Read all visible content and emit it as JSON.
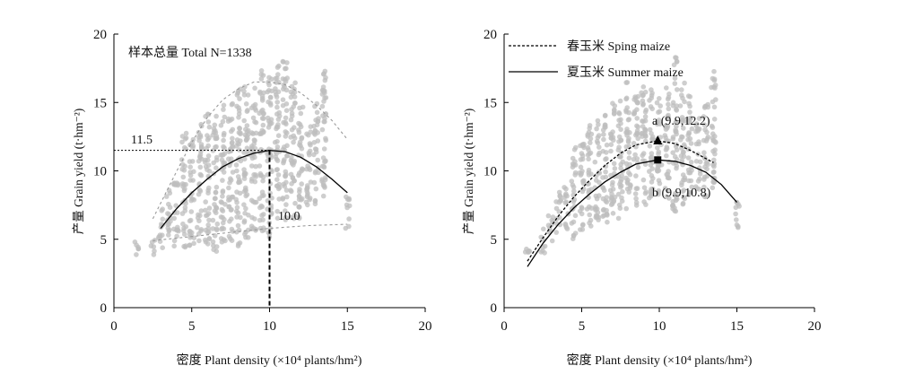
{
  "chart_data": [
    {
      "type": "scatter",
      "panel": "left",
      "xlabel": "密度 Plant density (×10⁴ plants/hm²)",
      "ylabel": "产量 Grain yield (t·hm⁻²)",
      "xlim": [
        0,
        20
      ],
      "ylim": [
        0,
        20
      ],
      "xticks": [
        "0",
        "5",
        "10",
        "15",
        "20"
      ],
      "yticks": [
        "0",
        "5",
        "10",
        "15",
        "20"
      ],
      "grid": false,
      "annotations": {
        "total": "样本总量 Total N=1338",
        "opt_yield": "11.5",
        "opt_density": "10.0"
      },
      "optimum": {
        "x": 10.0,
        "y": 11.5
      },
      "series": [
        {
          "role": "upper-boundary",
          "style": "dashed",
          "color": "#9a9a9a",
          "x": [
            2.5,
            4,
            5,
            6,
            7,
            8,
            9,
            10,
            11,
            12,
            13,
            14,
            15
          ],
          "y": [
            6.5,
            9.9,
            12.1,
            13.9,
            15.2,
            16.0,
            16.5,
            16.5,
            16.3,
            15.7,
            14.8,
            13.7,
            12.3
          ]
        },
        {
          "role": "fitted",
          "style": "solid",
          "color": "#000000",
          "x": [
            3,
            4,
            5,
            6,
            7,
            8,
            9,
            10,
            11,
            12,
            13,
            14,
            15
          ],
          "y": [
            5.8,
            7.2,
            8.4,
            9.4,
            10.3,
            10.9,
            11.3,
            11.5,
            11.4,
            11.0,
            10.3,
            9.4,
            8.4
          ]
        },
        {
          "role": "lower-boundary",
          "style": "dashed",
          "color": "#9a9a9a",
          "x": [
            2.5,
            5,
            7.5,
            10,
            12.5,
            15
          ],
          "y": [
            4.9,
            5.2,
            5.5,
            5.8,
            6.0,
            6.1
          ]
        }
      ],
      "scatter_columns": [
        {
          "x": 1.5,
          "y": [
            3.6,
            4.9
          ]
        },
        {
          "x": 2.5,
          "y": [
            3.8,
            5.2
          ]
        },
        {
          "x": 3,
          "y": [
            4.2,
            7.5
          ]
        },
        {
          "x": 3.5,
          "y": [
            4.6,
            8.9
          ]
        },
        {
          "x": 4,
          "y": [
            4.5,
            9.5
          ]
        },
        {
          "x": 4.5,
          "y": [
            4.2,
            12.8
          ]
        },
        {
          "x": 5,
          "y": [
            4.5,
            12.5
          ]
        },
        {
          "x": 5.5,
          "y": [
            4.7,
            13.5
          ]
        },
        {
          "x": 6,
          "y": [
            4.5,
            14.5
          ]
        },
        {
          "x": 6.5,
          "y": [
            4.0,
            14.3
          ]
        },
        {
          "x": 7,
          "y": [
            4.5,
            15.0
          ]
        },
        {
          "x": 7.5,
          "y": [
            4.8,
            15.5
          ]
        },
        {
          "x": 8,
          "y": [
            4.5,
            16.0
          ]
        },
        {
          "x": 8.5,
          "y": [
            5.0,
            16.5
          ]
        },
        {
          "x": 9,
          "y": [
            5.5,
            16.4
          ]
        },
        {
          "x": 9.5,
          "y": [
            5.2,
            17.5
          ]
        },
        {
          "x": 10,
          "y": [
            5.0,
            17.0
          ]
        },
        {
          "x": 10.5,
          "y": [
            6.5,
            17.8
          ]
        },
        {
          "x": 11,
          "y": [
            6.4,
            18.4
          ]
        },
        {
          "x": 11.5,
          "y": [
            6.5,
            16.5
          ]
        },
        {
          "x": 12,
          "y": [
            6.4,
            14.8
          ]
        },
        {
          "x": 12.5,
          "y": [
            7.0,
            13.5
          ]
        },
        {
          "x": 13,
          "y": [
            7.5,
            15.0
          ]
        },
        {
          "x": 13.5,
          "y": [
            7.0,
            17.5
          ]
        },
        {
          "x": 15,
          "y": [
            5.6,
            8.2
          ]
        }
      ]
    },
    {
      "type": "scatter",
      "panel": "right",
      "xlabel": "密度 Plant density (×10⁴ plants/hm²)",
      "ylabel": "产量 Grain yield (t·hm⁻²)",
      "xlim": [
        0,
        20
      ],
      "ylim": [
        0,
        20
      ],
      "xticks": [
        "0",
        "5",
        "10",
        "15",
        "20"
      ],
      "yticks": [
        "0",
        "5",
        "10",
        "15",
        "20"
      ],
      "grid": false,
      "legend_position": "top-left",
      "series": [
        {
          "name": "春玉米 Sping maize",
          "style": "dashed",
          "color": "#000000",
          "x": [
            1.5,
            2.5,
            3.5,
            4.5,
            5.5,
            6.5,
            7.5,
            8.5,
            9.9,
            11,
            12,
            13.5
          ],
          "y": [
            3.4,
            5.1,
            6.7,
            8.1,
            9.3,
            10.4,
            11.3,
            11.9,
            12.2,
            12.0,
            11.5,
            10.6
          ]
        },
        {
          "name": "夏玉米 Summer maize",
          "style": "solid",
          "color": "#000000",
          "x": [
            1.5,
            2.5,
            3.5,
            4.5,
            5.5,
            6.5,
            7.5,
            8.5,
            9.9,
            11,
            12,
            13,
            14,
            15
          ],
          "y": [
            3.0,
            4.7,
            6.1,
            7.3,
            8.3,
            9.2,
            9.9,
            10.5,
            10.8,
            10.7,
            10.4,
            9.9,
            9.0,
            7.7
          ]
        }
      ],
      "points": [
        {
          "label": "a (9.9,12.2)",
          "x": 9.9,
          "y": 12.2,
          "marker": "triangle"
        },
        {
          "label": "b (9.9,10.8)",
          "x": 9.9,
          "y": 10.8,
          "marker": "square"
        }
      ],
      "scatter_columns": [
        {
          "x": 1.5,
          "y": [
            3.5,
            4.7
          ]
        },
        {
          "x": 2.5,
          "y": [
            4.0,
            6.0
          ]
        },
        {
          "x": 3,
          "y": [
            4.5,
            7.0
          ]
        },
        {
          "x": 3.5,
          "y": [
            5.0,
            8.5
          ]
        },
        {
          "x": 4,
          "y": [
            5.5,
            9.0
          ]
        },
        {
          "x": 4.5,
          "y": [
            5.0,
            12.0
          ]
        },
        {
          "x": 5,
          "y": [
            5.5,
            12.5
          ]
        },
        {
          "x": 5.5,
          "y": [
            5.8,
            13.5
          ]
        },
        {
          "x": 6,
          "y": [
            6.0,
            14.0
          ]
        },
        {
          "x": 6.5,
          "y": [
            6.0,
            14.5
          ]
        },
        {
          "x": 7,
          "y": [
            6.5,
            15.0
          ]
        },
        {
          "x": 7.5,
          "y": [
            6.5,
            15.5
          ]
        },
        {
          "x": 8,
          "y": [
            7.0,
            16.5
          ]
        },
        {
          "x": 8.5,
          "y": [
            7.0,
            15.5
          ]
        },
        {
          "x": 9,
          "y": [
            7.5,
            16.5
          ]
        },
        {
          "x": 9.5,
          "y": [
            7.5,
            16.0
          ]
        },
        {
          "x": 10,
          "y": [
            8.0,
            15.5
          ]
        },
        {
          "x": 10.5,
          "y": [
            8.0,
            16.5
          ]
        },
        {
          "x": 11,
          "y": [
            7.0,
            18.5
          ]
        },
        {
          "x": 11.5,
          "y": [
            7.5,
            16.5
          ]
        },
        {
          "x": 12,
          "y": [
            8.0,
            15.5
          ]
        },
        {
          "x": 12.5,
          "y": [
            8.5,
            14.0
          ]
        },
        {
          "x": 13,
          "y": [
            8.0,
            15.0
          ]
        },
        {
          "x": 13.5,
          "y": [
            8.5,
            17.5
          ]
        },
        {
          "x": 15,
          "y": [
            5.6,
            8.0
          ]
        }
      ]
    }
  ]
}
